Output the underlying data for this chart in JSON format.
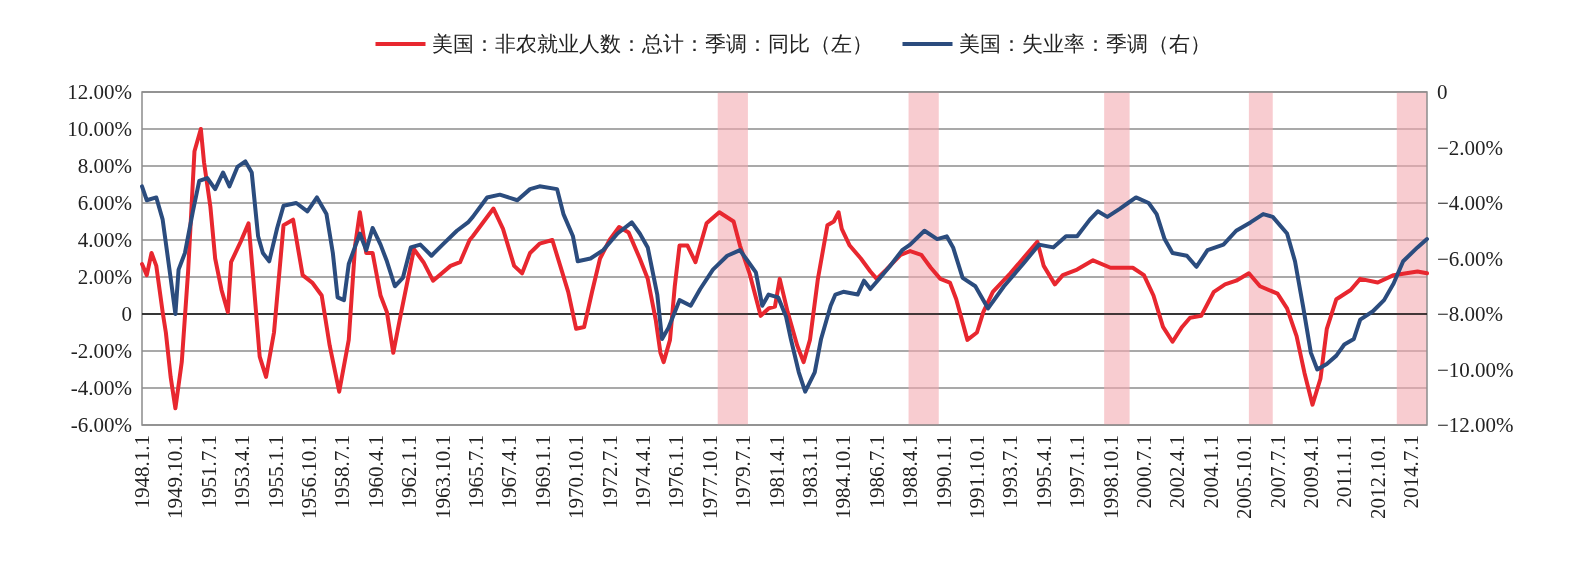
{
  "chart_data": {
    "type": "line",
    "legend": "top",
    "grid": "y",
    "xlim": [
      "1948-01",
      "2015-05"
    ],
    "xticks": [
      {
        "value": "1948-01",
        "label": "1948.1.1"
      },
      {
        "value": "1949-10",
        "label": "1949.10.1"
      },
      {
        "value": "1951-07",
        "label": "1951.7.1"
      },
      {
        "value": "1953-04",
        "label": "1953.4.1"
      },
      {
        "value": "1955-01",
        "label": "1955.1.1"
      },
      {
        "value": "1956-10",
        "label": "1956.10.1"
      },
      {
        "value": "1958-07",
        "label": "1958.7.1"
      },
      {
        "value": "1960-04",
        "label": "1960.4.1"
      },
      {
        "value": "1962-01",
        "label": "1962.1.1"
      },
      {
        "value": "1963-10",
        "label": "1963.10.1"
      },
      {
        "value": "1965-07",
        "label": "1965.7.1"
      },
      {
        "value": "1967-04",
        "label": "1967.4.1"
      },
      {
        "value": "1969-01",
        "label": "1969.1.1"
      },
      {
        "value": "1970-10",
        "label": "1970.10.1"
      },
      {
        "value": "1972-07",
        "label": "1972.7.1"
      },
      {
        "value": "1974-04",
        "label": "1974.4.1"
      },
      {
        "value": "1976-01",
        "label": "1976.1.1"
      },
      {
        "value": "1977-10",
        "label": "1977.10.1"
      },
      {
        "value": "1979-07",
        "label": "1979.7.1"
      },
      {
        "value": "1981-04",
        "label": "1981.4.1"
      },
      {
        "value": "1983-01",
        "label": "1983.1.1"
      },
      {
        "value": "1984-10",
        "label": "1984.10.1"
      },
      {
        "value": "1986-07",
        "label": "1986.7.1"
      },
      {
        "value": "1988-04",
        "label": "1988.4.1"
      },
      {
        "value": "1990-01",
        "label": "1990.1.1"
      },
      {
        "value": "1991-10",
        "label": "1991.10.1"
      },
      {
        "value": "1993-07",
        "label": "1993.7.1"
      },
      {
        "value": "1995-04",
        "label": "1995.4.1"
      },
      {
        "value": "1997-01",
        "label": "1997.1.1"
      },
      {
        "value": "1998-10",
        "label": "1998.10.1"
      },
      {
        "value": "2000-07",
        "label": "2000.7.1"
      },
      {
        "value": "2002-04",
        "label": "2002.4.1"
      },
      {
        "value": "2004-01",
        "label": "2004.1.1"
      },
      {
        "value": "2005-10",
        "label": "2005.10.1"
      },
      {
        "value": "2007-07",
        "label": "2007.7.1"
      },
      {
        "value": "2009-04",
        "label": "2009.4.1"
      },
      {
        "value": "2011-01",
        "label": "2011.1.1"
      },
      {
        "value": "2012-10",
        "label": "2012.10.1"
      },
      {
        "value": "2014-07",
        "label": "2014.7.1"
      }
    ],
    "ylim": [
      -6,
      12
    ],
    "yticks": [
      {
        "value": 12,
        "label": "12.00%"
      },
      {
        "value": 10,
        "label": "10.00%"
      },
      {
        "value": 8,
        "label": "8.00%"
      },
      {
        "value": 6,
        "label": "6.00%"
      },
      {
        "value": 4,
        "label": "4.00%"
      },
      {
        "value": 2,
        "label": "2.00%"
      },
      0,
      {
        "value": -2,
        "label": "-2.00%"
      },
      {
        "value": -4,
        "label": "-4.00%"
      },
      {
        "value": -6,
        "label": "-6.00%"
      }
    ],
    "y2lim": [
      -12,
      0
    ],
    "y2ticks": [
      0,
      {
        "value": -2,
        "label": "−2.00%"
      },
      {
        "value": -4,
        "label": "−4.00%"
      },
      {
        "value": -6,
        "label": "−6.00%"
      },
      {
        "value": -8,
        "label": "−8.00%"
      },
      {
        "value": -10,
        "label": "−10.00%"
      },
      {
        "value": -12,
        "label": "−12.00%"
      }
    ],
    "bands": [
      {
        "axis": "x",
        "from": "1978-03",
        "to": "1979-10",
        "color": "#f4aab1"
      },
      {
        "axis": "x",
        "from": "1988-03",
        "to": "1989-10",
        "color": "#f4aab1"
      },
      {
        "axis": "x",
        "from": "1998-06",
        "to": "1999-10",
        "color": "#f4aab1"
      },
      {
        "axis": "x",
        "from": "2006-01",
        "to": "2007-04",
        "color": "#f4aab1"
      },
      {
        "axis": "x",
        "from": "2013-10",
        "to": "2015-05",
        "color": "#f4aab1"
      }
    ],
    "series": [
      {
        "name": "美国：非农就业人数：总计：季调：同比（左）",
        "color": "#e8272f",
        "x": [
          "1948-01",
          "1948-04",
          "1948-07",
          "1948-10",
          "1949-02",
          "1949-04",
          "1949-07",
          "1949-10",
          "1950-02",
          "1950-06",
          "1950-10",
          "1951-02",
          "1951-04",
          "1951-08",
          "1951-11",
          "1952-03",
          "1952-07",
          "1952-09",
          "1953-03",
          "1953-08",
          "1953-11",
          "1954-03",
          "1954-07",
          "1954-12",
          "1955-06",
          "1955-12",
          "1956-06",
          "1956-12",
          "1957-06",
          "1957-11",
          "1958-05",
          "1958-11",
          "1959-03",
          "1959-06",
          "1959-10",
          "1960-02",
          "1960-07",
          "1960-11",
          "1961-03",
          "1961-08",
          "1962-04",
          "1962-10",
          "1963-04",
          "1964-03",
          "1964-09",
          "1965-03",
          "1965-05",
          "1966-06",
          "1966-12",
          "1967-07",
          "1967-12",
          "1968-05",
          "1968-11",
          "1969-07",
          "1969-12",
          "1970-05",
          "1970-10",
          "1971-03",
          "1971-08",
          "1972-01",
          "1972-07",
          "1973-01",
          "1973-07",
          "1974-02",
          "1974-07",
          "1974-12",
          "1975-03",
          "1975-05",
          "1975-09",
          "1975-12",
          "1976-03",
          "1976-08",
          "1977-01",
          "1977-08",
          "1978-04",
          "1979-01",
          "1979-05",
          "1979-11",
          "1980-06",
          "1980-11",
          "1981-03",
          "1981-06",
          "1981-11",
          "1982-05",
          "1982-09",
          "1983-01",
          "1983-06",
          "1983-12",
          "1984-04",
          "1984-07",
          "1984-09",
          "1985-02",
          "1985-09",
          "1986-03",
          "1986-07",
          "1987-01",
          "1987-10",
          "1988-04",
          "1988-11",
          "1989-05",
          "1989-11",
          "1990-05",
          "1990-09",
          "1991-04",
          "1991-10",
          "1992-02",
          "1992-08",
          "1993-07",
          "1994-03",
          "1994-12",
          "1995-04",
          "1995-11",
          "1996-04",
          "1997-01",
          "1997-11",
          "1998-10",
          "1999-12",
          "2000-07",
          "2001-01",
          "2001-07",
          "2002-01",
          "2002-07",
          "2002-12",
          "2003-07",
          "2004-03",
          "2004-10",
          "2005-05",
          "2006-01",
          "2006-08",
          "2007-07",
          "2008-01",
          "2008-07",
          "2008-12",
          "2009-05",
          "2009-10",
          "2010-02",
          "2010-08",
          "2011-05",
          "2011-11",
          "2012-10",
          "2013-08",
          "2014-11",
          "2015-05"
        ],
        "values": [
          2.7,
          2.1,
          3.3,
          2.6,
          0.1,
          -1.0,
          -3.4,
          -5.1,
          -2.6,
          2.3,
          8.8,
          10.0,
          8.2,
          5.8,
          3.0,
          1.3,
          0.1,
          2.8,
          3.9,
          4.9,
          1.9,
          -2.3,
          -3.4,
          -1.0,
          4.8,
          5.1,
          2.1,
          1.7,
          1.0,
          -1.7,
          -4.2,
          -1.4,
          3.7,
          5.5,
          3.3,
          3.3,
          1.0,
          0.1,
          -2.1,
          0.1,
          3.5,
          2.8,
          1.8,
          2.6,
          2.8,
          4.0,
          4.2,
          5.7,
          4.6,
          2.6,
          2.2,
          3.3,
          3.8,
          4.0,
          2.6,
          1.2,
          -0.8,
          -0.7,
          1.2,
          3.0,
          4.0,
          4.7,
          4.4,
          3.0,
          1.9,
          -0.3,
          -2.1,
          -2.6,
          -1.4,
          1.5,
          3.7,
          3.7,
          2.8,
          4.9,
          5.5,
          5.0,
          3.7,
          2.2,
          -0.1,
          0.3,
          0.4,
          1.9,
          0.1,
          -1.7,
          -2.6,
          -1.4,
          1.9,
          4.8,
          5.0,
          5.5,
          4.6,
          3.7,
          3.0,
          2.3,
          1.9,
          2.4,
          3.2,
          3.4,
          3.2,
          2.5,
          1.9,
          1.7,
          0.8,
          -1.4,
          -1.0,
          0.1,
          1.2,
          2.2,
          3.0,
          3.9,
          2.6,
          1.6,
          2.1,
          2.4,
          2.9,
          2.5,
          2.5,
          2.1,
          1.0,
          -0.7,
          -1.5,
          -0.7,
          -0.2,
          -0.1,
          1.2,
          1.6,
          1.8,
          2.2,
          1.5,
          1.1,
          0.3,
          -1.2,
          -3.2,
          -4.9,
          -3.5,
          -0.8,
          0.8,
          1.3,
          1.9,
          1.7,
          2.1,
          2.3,
          2.2
        ]
      },
      {
        "name": "美国：失业率：季调（右）",
        "color": "#2b4c7e",
        "axis": "y2",
        "x": [
          "1948-01",
          "1948-04",
          "1948-10",
          "1949-02",
          "1949-07",
          "1949-10",
          "1949-12",
          "1950-04",
          "1950-09",
          "1951-01",
          "1951-06",
          "1951-11",
          "1952-04",
          "1952-08",
          "1953-01",
          "1953-06",
          "1953-10",
          "1954-02",
          "1954-05",
          "1954-09",
          "1955-02",
          "1955-06",
          "1956-02",
          "1956-09",
          "1957-03",
          "1957-09",
          "1958-01",
          "1958-04",
          "1958-08",
          "1958-11",
          "1959-06",
          "1959-10",
          "1960-02",
          "1960-07",
          "1960-11",
          "1961-04",
          "1961-09",
          "1962-02",
          "1962-08",
          "1963-03",
          "1963-10",
          "1964-07",
          "1965-02",
          "1965-05",
          "1966-02",
          "1966-10",
          "1967-09",
          "1968-05",
          "1968-11",
          "1969-10",
          "1970-02",
          "1970-08",
          "1970-11",
          "1971-07",
          "1972-03",
          "1972-12",
          "1973-09",
          "1974-02",
          "1974-07",
          "1975-01",
          "1975-04",
          "1975-08",
          "1976-03",
          "1976-10",
          "1977-04",
          "1977-12",
          "1978-09",
          "1979-05",
          "1979-10",
          "1980-03",
          "1980-07",
          "1980-11",
          "1981-05",
          "1981-10",
          "1982-01",
          "1982-06",
          "1982-10",
          "1983-04",
          "1983-08",
          "1984-02",
          "1984-05",
          "1984-10",
          "1985-07",
          "1985-11",
          "1986-03",
          "1986-09",
          "1987-03",
          "1987-11",
          "1988-04",
          "1989-01",
          "1989-09",
          "1990-03",
          "1990-07",
          "1991-01",
          "1991-09",
          "1992-05",
          "1993-03",
          "1994-03",
          "1995-01",
          "1995-10",
          "1996-06",
          "1997-01",
          "1997-09",
          "1998-02",
          "1998-08",
          "1999-04",
          "1999-09",
          "2000-02",
          "2000-10",
          "2001-03",
          "2001-08",
          "2002-01",
          "2002-10",
          "2003-04",
          "2003-11",
          "2004-09",
          "2005-05",
          "2006-02",
          "2006-10",
          "2007-04",
          "2008-01",
          "2008-06",
          "2008-11",
          "2009-04",
          "2009-08",
          "2010-02",
          "2010-08",
          "2011-01",
          "2011-07",
          "2011-11",
          "2012-07",
          "2013-02",
          "2013-08",
          "2014-02",
          "2014-11",
          "2015-05"
        ],
        "values": [
          -3.4,
          -3.9,
          -3.8,
          -4.6,
          -6.7,
          -8.0,
          -6.4,
          -5.8,
          -4.3,
          -3.2,
          -3.1,
          -3.5,
          -2.9,
          -3.4,
          -2.7,
          -2.5,
          -2.9,
          -5.2,
          -5.8,
          -6.1,
          -4.9,
          -4.1,
          -4.0,
          -4.3,
          -3.8,
          -4.4,
          -5.8,
          -7.4,
          -7.5,
          -6.2,
          -5.1,
          -5.7,
          -4.9,
          -5.5,
          -6.1,
          -7.0,
          -6.7,
          -5.6,
          -5.5,
          -5.9,
          -5.5,
          -5.0,
          -4.7,
          -4.5,
          -3.8,
          -3.7,
          -3.9,
          -3.5,
          -3.4,
          -3.5,
          -4.4,
          -5.2,
          -6.1,
          -6.0,
          -5.7,
          -5.1,
          -4.7,
          -5.1,
          -5.6,
          -7.3,
          -8.9,
          -8.5,
          -7.5,
          -7.7,
          -7.1,
          -6.4,
          -5.9,
          -5.7,
          -6.1,
          -6.5,
          -7.7,
          -7.3,
          -7.4,
          -8.1,
          -8.9,
          -10.1,
          -10.8,
          -10.1,
          -8.9,
          -7.7,
          -7.3,
          -7.2,
          -7.3,
          -6.8,
          -7.1,
          -6.7,
          -6.3,
          -5.7,
          -5.5,
          -5.0,
          -5.3,
          -5.2,
          -5.6,
          -6.7,
          -7.0,
          -7.8,
          -7.0,
          -6.2,
          -5.5,
          -5.6,
          -5.2,
          -5.2,
          -4.6,
          -4.3,
          -4.5,
          -4.2,
          -4.0,
          -3.8,
          -4.0,
          -4.4,
          -5.3,
          -5.8,
          -5.9,
          -6.3,
          -5.7,
          -5.5,
          -5.0,
          -4.7,
          -4.4,
          -4.5,
          -5.1,
          -6.1,
          -7.7,
          -9.4,
          -10.0,
          -9.8,
          -9.5,
          -9.1,
          -8.9,
          -8.2,
          -7.9,
          -7.5,
          -6.9,
          -6.1,
          -5.6,
          -5.3
        ]
      }
    ]
  }
}
